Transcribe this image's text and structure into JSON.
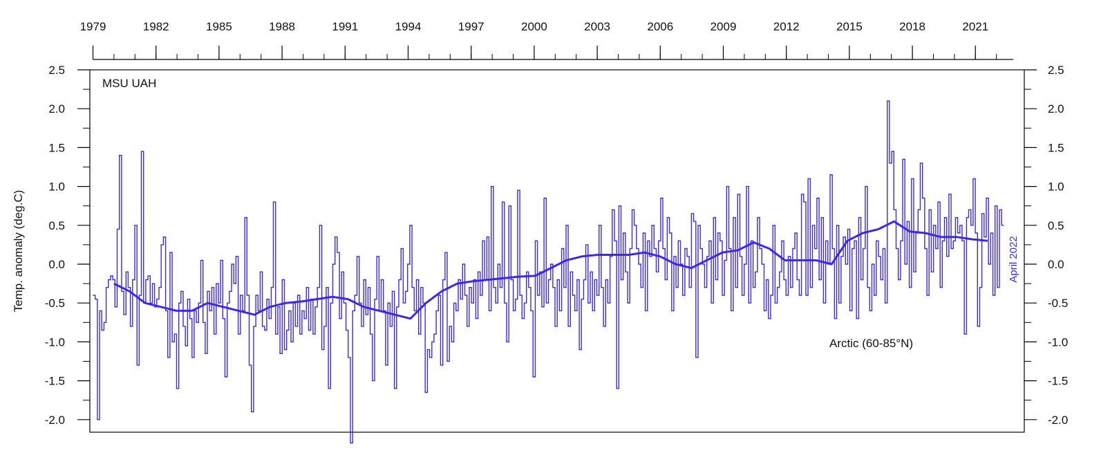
{
  "chart_data": {
    "type": "line",
    "title": "",
    "ylabel": "Temp. anomaly (deg.C)",
    "source_label": "MSU UAH",
    "region_label": "Arctic (60-85°N)",
    "date_label": "April 2022",
    "x_tick_labels": [
      "1979",
      "1982",
      "1985",
      "1988",
      "1991",
      "1994",
      "1997",
      "2000",
      "2003",
      "2006",
      "2009",
      "2012",
      "2015",
      "2018",
      "2021"
    ],
    "y_tick_labels": [
      "2.5",
      "2.0",
      "1.5",
      "1.0",
      "0.5",
      "0.0",
      "-0.5",
      "-1.0",
      "-1.5",
      "-2.0"
    ],
    "ylim": [
      -2.3,
      2.5
    ],
    "grid": false,
    "colors": {
      "series": "#3a28ee",
      "axis": "#000000",
      "date_label": "#3a28ee"
    },
    "series": [
      {
        "kind": "monthly",
        "x_start": "1979-01",
        "x_end": "2022-04",
        "values": [
          -0.4,
          -0.45,
          -2.0,
          -0.6,
          -0.85,
          -0.75,
          -0.3,
          -0.2,
          -0.15,
          -0.2,
          -0.55,
          0.45,
          1.4,
          -0.35,
          -0.65,
          -0.1,
          -0.3,
          -0.8,
          -0.2,
          0.5,
          -1.3,
          -0.4,
          1.45,
          -0.5,
          -0.2,
          -0.15,
          -0.5,
          -0.25,
          -0.55,
          -0.45,
          -0.3,
          0.25,
          0.35,
          -0.6,
          -1.2,
          0.15,
          -1.0,
          -0.9,
          -1.6,
          -0.5,
          -0.35,
          -0.8,
          -1.05,
          -0.45,
          -0.7,
          -1.2,
          -0.6,
          -0.75,
          -0.5,
          0.05,
          -0.75,
          -1.15,
          -0.35,
          -0.6,
          -0.3,
          -0.9,
          -0.25,
          -0.5,
          0.05,
          -0.7,
          -1.45,
          -0.5,
          -0.35,
          0.0,
          -0.25,
          0.1,
          -0.9,
          -0.4,
          -0.6,
          0.6,
          -0.4,
          -1.3,
          -1.9,
          -0.8,
          -0.4,
          -0.6,
          -0.1,
          -0.8,
          -0.85,
          -0.45,
          -0.7,
          -0.3,
          0.8,
          -0.9,
          -0.55,
          -1.15,
          -0.2,
          -1.1,
          -0.85,
          -0.6,
          -1.0,
          -0.5,
          -0.8,
          -0.4,
          -0.9,
          -0.6,
          -0.7,
          -0.3,
          -0.85,
          -0.45,
          -0.9,
          -0.55,
          -0.3,
          0.5,
          -1.1,
          -0.8,
          -0.3,
          -1.6,
          -0.5,
          0.0,
          0.35,
          0.15,
          -0.7,
          -0.1,
          -0.5,
          -0.85,
          -1.2,
          -2.3,
          -0.6,
          -0.4,
          0.1,
          -0.5,
          -0.8,
          -0.2,
          -0.65,
          -0.3,
          -0.9,
          -1.5,
          -0.45,
          0.1,
          -0.6,
          -0.2,
          -0.6,
          -1.3,
          -0.5,
          -0.8,
          -0.35,
          -1.6,
          -0.55,
          -0.2,
          0.2,
          -0.5,
          -0.35,
          0.0,
          0.5,
          -0.3,
          -0.6,
          -0.2,
          -0.9,
          -0.3,
          -0.5,
          -1.65,
          -1.1,
          -1.2,
          -1.0,
          -0.9,
          -0.6,
          -0.4,
          -1.3,
          -0.2,
          0.15,
          -1.25,
          -0.8,
          -1.0,
          -0.5,
          -0.6,
          -0.2,
          -0.45,
          0.0,
          -0.4,
          -0.8,
          -0.3,
          -0.5,
          -0.2,
          -0.7,
          -0.1,
          -0.4,
          0.3,
          -0.2,
          0.35,
          -0.6,
          1.0,
          -0.3,
          -0.5,
          0.0,
          -0.3,
          0.8,
          -0.5,
          -1.0,
          0.75,
          -0.2,
          -0.6,
          -0.45,
          0.95,
          -0.4,
          -0.7,
          -0.5,
          -0.1,
          -0.3,
          -0.6,
          -1.45,
          0.3,
          -0.4,
          -0.1,
          -0.55,
          0.85,
          -0.5,
          -0.2,
          0.0,
          -0.3,
          -0.8,
          -0.2,
          -0.6,
          0.2,
          -0.3,
          0.5,
          -0.8,
          -0.1,
          -0.4,
          -0.6,
          -0.2,
          -1.1,
          -0.45,
          -0.2,
          0.25,
          -0.5,
          -0.1,
          -0.6,
          -0.2,
          -0.4,
          0.5,
          -0.3,
          -0.8,
          -0.2,
          -0.5,
          0.1,
          0.7,
          0.3,
          -1.6,
          0.75,
          -0.2,
          0.4,
          -0.1,
          -0.5,
          0.2,
          0.7,
          0.5,
          0.2,
          0.0,
          -0.3,
          0.4,
          -0.6,
          0.3,
          0.1,
          0.5,
          0.2,
          -0.1,
          0.3,
          0.85,
          0.2,
          -0.2,
          0.6,
          0.4,
          -0.6,
          0.1,
          -0.3,
          0.3,
          0.0,
          -0.4,
          0.2,
          0.1,
          -0.3,
          0.65,
          0.55,
          -1.2,
          0.5,
          0.2,
          0.0,
          -0.3,
          0.1,
          0.3,
          -0.5,
          0.6,
          -0.2,
          0.4,
          0.3,
          -0.4,
          0.05,
          1.0,
          0.2,
          -0.6,
          0.6,
          -0.3,
          0.9,
          0.1,
          -0.4,
          0.0,
          1.0,
          -0.5,
          0.3,
          -0.3,
          -0.1,
          0.6,
          0.2,
          0.0,
          -0.6,
          -0.2,
          -0.7,
          -0.4,
          0.5,
          -0.5,
          -0.3,
          -0.1,
          0.3,
          -0.2,
          -0.4,
          0.1,
          -0.3,
          0.2,
          0.4,
          -0.2,
          -0.4,
          0.9,
          0.8,
          -0.4,
          1.1,
          -0.3,
          0.5,
          0.2,
          0.85,
          -0.2,
          0.6,
          -0.5,
          0.3,
          0.0,
          1.15,
          0.2,
          -0.7,
          0.5,
          -0.5,
          0.1,
          0.35,
          0.0,
          0.45,
          -0.6,
          0.2,
          0.3,
          -0.7,
          0.6,
          -0.2,
          0.2,
          1.0,
          -0.3,
          -0.6,
          0.0,
          -0.4,
          0.3,
          0.1,
          -0.2,
          0.2,
          -0.5,
          2.1,
          1.3,
          1.45,
          0.7,
          0.2,
          -0.2,
          0.3,
          1.35,
          0.0,
          0.55,
          -0.3,
          1.1,
          -0.1,
          0.4,
          0.7,
          1.3,
          0.85,
          0.2,
          -0.4,
          0.7,
          -0.1,
          0.5,
          0.2,
          0.8,
          -0.3,
          0.3,
          0.6,
          0.1,
          0.9,
          0.2,
          0.3,
          0.6,
          0.4,
          0.5,
          0.3,
          -0.9,
          0.6,
          0.7,
          0.5,
          1.1,
          0.4,
          -0.8,
          -0.3,
          0.65,
          0.35,
          0.85,
          0.0,
          0.4,
          -0.4,
          0.75,
          -0.3,
          0.7,
          0.5
        ]
      },
      {
        "kind": "running_mean",
        "x_start": "1980-01",
        "x_end": "2021-08",
        "values": [
          -0.25,
          -0.35,
          -0.5,
          -0.55,
          -0.6,
          -0.6,
          -0.5,
          -0.55,
          -0.6,
          -0.65,
          -0.55,
          -0.5,
          -0.48,
          -0.45,
          -0.42,
          -0.45,
          -0.55,
          -0.6,
          -0.65,
          -0.7,
          -0.5,
          -0.35,
          -0.25,
          -0.22,
          -0.2,
          -0.18,
          -0.16,
          -0.15,
          -0.05,
          0.05,
          0.1,
          0.12,
          0.12,
          0.12,
          0.15,
          0.1,
          0.0,
          -0.05,
          0.05,
          0.15,
          0.18,
          0.28,
          0.2,
          0.05,
          0.05,
          0.05,
          0.0,
          0.3,
          0.4,
          0.45,
          0.55,
          0.42,
          0.4,
          0.35,
          0.35,
          0.32,
          0.3
        ]
      }
    ]
  }
}
